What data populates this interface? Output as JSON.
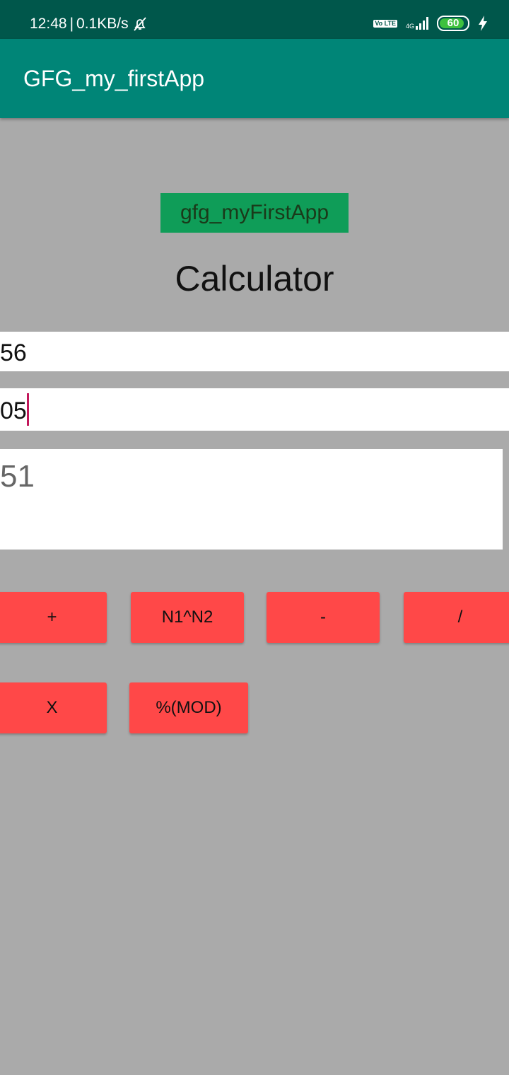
{
  "status_bar": {
    "time": "12:48",
    "speed": "0.1KB/s",
    "volte": "Vo LTE",
    "network": "4G",
    "battery": "60",
    "icons": [
      "muted-bell-icon",
      "volte-icon",
      "signal-icon",
      "battery-icon",
      "charging-icon"
    ]
  },
  "app_bar": {
    "title": "GFG_my_firstApp"
  },
  "main": {
    "label": "gfg_myFirstApp",
    "heading": "Calculator",
    "input1": "56",
    "input2": "05",
    "result": "51"
  },
  "buttons": {
    "add": "+",
    "power": "N1^N2",
    "subtract": "-",
    "divide": "/",
    "multiply": "X",
    "mod": "%(MOD)"
  },
  "colors": {
    "status_bar": "#00574b",
    "app_bar": "#008577",
    "background": "#aaaaaa",
    "button": "#ff4848",
    "label_bg": "#0f9d58",
    "cursor": "#c2185b"
  }
}
